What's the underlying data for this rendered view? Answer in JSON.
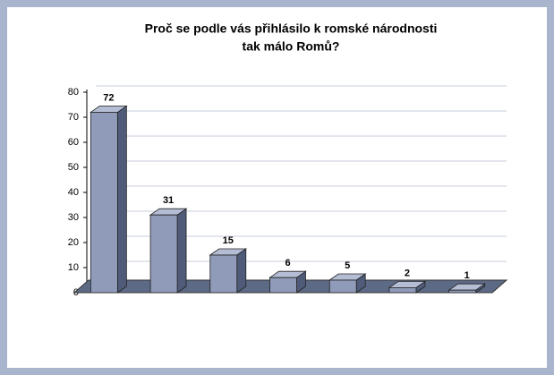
{
  "chart_data": {
    "type": "bar3d",
    "title": "Proč se podle vás přihlásilo k romské národnosti",
    "title_line2": "tak málo Romů?",
    "categories": [
      null,
      null,
      null,
      null,
      null,
      null,
      null
    ],
    "values": [
      72,
      31,
      15,
      6,
      5,
      2,
      1
    ],
    "color": "#8f9bb9",
    "ylim": [
      0,
      80
    ],
    "yticks": [
      0,
      10,
      20,
      30,
      40,
      50,
      60,
      70,
      80
    ],
    "grid": true
  }
}
